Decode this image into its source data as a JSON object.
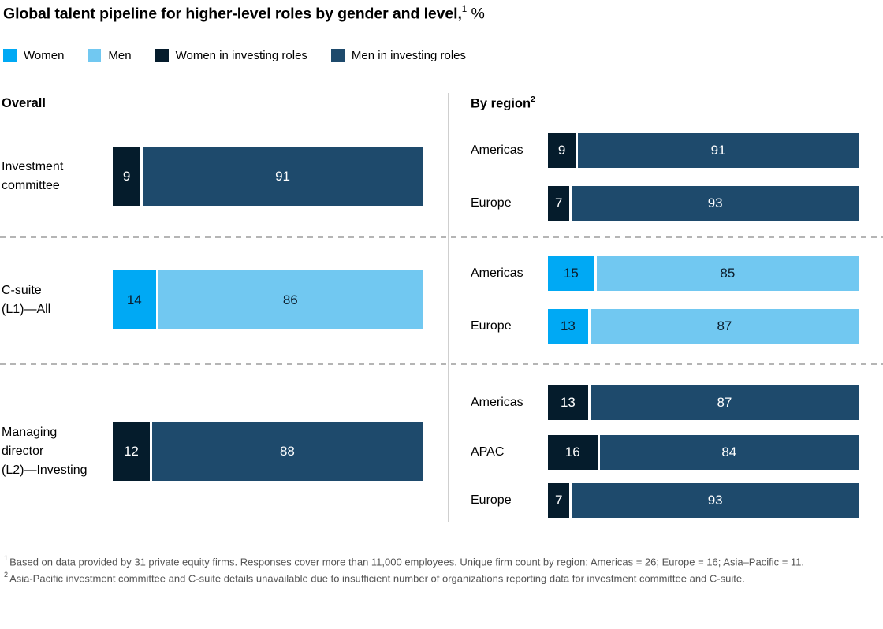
{
  "title": {
    "main": "Global talent pipeline for higher-level roles by gender and level,",
    "sup": "1",
    "unit": "%"
  },
  "legend": {
    "items": [
      {
        "label": "Women",
        "color": "#00a9f4"
      },
      {
        "label": "Men",
        "color": "#71c8f1"
      },
      {
        "label": "Women in investing roles",
        "color": "#051c2c"
      },
      {
        "label": "Men in investing roles",
        "color": "#1e4a6c"
      }
    ]
  },
  "sections": {
    "overall": {
      "header": "Overall"
    },
    "by_region": {
      "header": "By region",
      "sup": "2"
    }
  },
  "chart_data": {
    "type": "bar",
    "orientation": "horizontal",
    "stacked": true,
    "unit": "%",
    "x_range": [
      0,
      100
    ],
    "series_names": [
      "Women",
      "Men",
      "Women in investing roles",
      "Men in investing roles"
    ],
    "overall": [
      {
        "label": "Investment\ncommittee",
        "series": "investing",
        "women": 9,
        "men": 91
      },
      {
        "label": "C-suite\n(L1)—All",
        "series": "all",
        "women": 14,
        "men": 86
      },
      {
        "label": "Managing\ndirector\n(L2)—Investing",
        "series": "investing",
        "women": 12,
        "men": 88
      }
    ],
    "by_region": [
      {
        "level": "Investment committee",
        "label": "Americas",
        "series": "investing",
        "women": 9,
        "men": 91
      },
      {
        "level": "Investment committee",
        "label": "Europe",
        "series": "investing",
        "women": 7,
        "men": 93
      },
      {
        "level": "C-suite (L1)—All",
        "label": "Americas",
        "series": "all",
        "women": 15,
        "men": 85
      },
      {
        "level": "C-suite (L1)—All",
        "label": "Europe",
        "series": "all",
        "women": 13,
        "men": 87
      },
      {
        "level": "Managing director (L2)—Investing",
        "label": "Americas",
        "series": "investing",
        "women": 13,
        "men": 87
      },
      {
        "level": "Managing director (L2)—Investing",
        "label": "APAC",
        "series": "investing",
        "women": 16,
        "men": 84
      },
      {
        "level": "Managing director (L2)—Investing",
        "label": "Europe",
        "series": "investing",
        "women": 7,
        "men": 93
      }
    ]
  },
  "footnotes": [
    {
      "sup": "1",
      "text": "Based on data provided by 31 private equity firms. Responses cover more than 11,000 employees. Unique firm count by region: Americas = 26; Europe = 16; Asia–Pacific = 11."
    },
    {
      "sup": "2",
      "text": "Asia-Pacific investment committee and C-suite details unavailable due to insufficient number of organizations reporting data for investment committee and C-suite."
    }
  ]
}
